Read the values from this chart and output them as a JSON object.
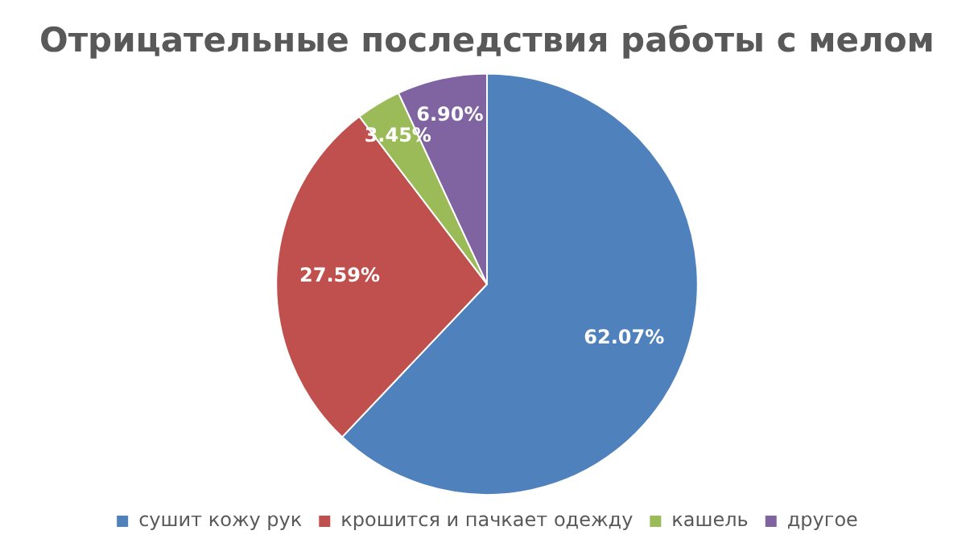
{
  "chart_data": {
    "type": "pie",
    "title": "Отрицательные последствия работы с мелом",
    "categories": [
      "сушит кожу рук",
      "крошится и пачкает одежду",
      "кашель",
      "другое"
    ],
    "values": [
      62.07,
      27.59,
      3.45,
      6.9
    ],
    "colors": [
      "#4f81bd",
      "#c0504d",
      "#9bbb59",
      "#8064a2"
    ],
    "value_labels": [
      "62.07%",
      "27.59%",
      "3.45%",
      "6.90%"
    ],
    "legend": "bottom"
  }
}
